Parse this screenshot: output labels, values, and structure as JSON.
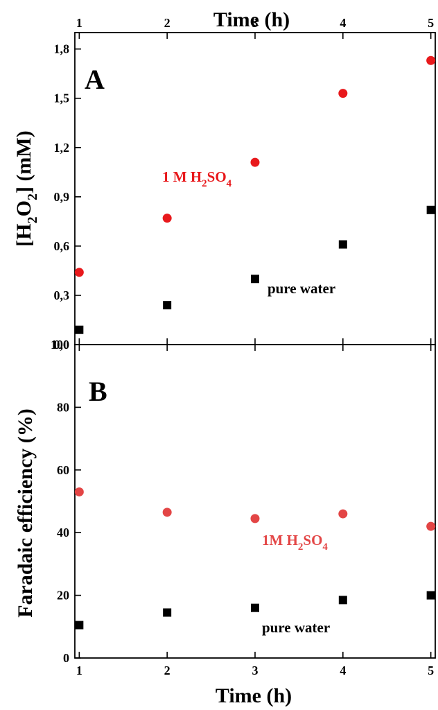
{
  "chart_data": [
    {
      "panel": "A",
      "type": "scatter",
      "top_xlabel": "Time (h)",
      "ylabel_parts": [
        "[H",
        "2",
        "O",
        "2",
        "] (mM)"
      ],
      "xlim": [
        0.95,
        5.05
      ],
      "ylim": [
        0.0,
        1.9
      ],
      "xticks": [
        1,
        2,
        3,
        4,
        5
      ],
      "xtick_labels": [
        "1",
        "2",
        "3",
        "4",
        "5"
      ],
      "yticks": [
        0.0,
        0.3,
        0.6,
        0.9,
        1.2,
        1.5,
        1.8
      ],
      "ytick_labels": [
        "0,0",
        "0,3",
        "0,6",
        "0,9",
        "1,2",
        "1,5",
        "1,8"
      ],
      "series": [
        {
          "marker": "circle",
          "color": "#e8191c",
          "x": [
            1,
            2,
            3,
            4,
            5
          ],
          "y": [
            0.44,
            0.77,
            1.11,
            1.53,
            1.73
          ],
          "label_parts": [
            "1 M H",
            "2",
            "SO",
            "4"
          ]
        },
        {
          "marker": "square",
          "color": "#000000",
          "x": [
            1,
            2,
            3,
            4,
            5
          ],
          "y": [
            0.09,
            0.24,
            0.4,
            0.61,
            0.82
          ],
          "label_parts": [
            "pure water"
          ]
        }
      ]
    },
    {
      "panel": "B",
      "type": "scatter",
      "xlabel": "Time (h)",
      "ylabel": "Faradaic efficiency (%)",
      "xlim": [
        0.95,
        5.05
      ],
      "ylim": [
        0,
        100
      ],
      "xticks": [
        1,
        2,
        3,
        4,
        5
      ],
      "xtick_labels": [
        "1",
        "2",
        "3",
        "4",
        "5"
      ],
      "yticks": [
        0,
        20,
        40,
        60,
        80,
        100
      ],
      "ytick_labels": [
        "0",
        "20",
        "40",
        "60",
        "80",
        "100"
      ],
      "series": [
        {
          "marker": "circle",
          "color": "#e34545",
          "x": [
            1,
            2,
            3,
            4,
            5
          ],
          "y": [
            53,
            46.5,
            44.5,
            46,
            42
          ],
          "label_parts": [
            "1M H",
            "2",
            "SO",
            "4"
          ]
        },
        {
          "marker": "square",
          "color": "#000000",
          "x": [
            1,
            2,
            3,
            4,
            5
          ],
          "y": [
            10.5,
            14.5,
            16,
            18.5,
            20
          ],
          "label_parts": [
            "pure water"
          ]
        }
      ]
    }
  ]
}
